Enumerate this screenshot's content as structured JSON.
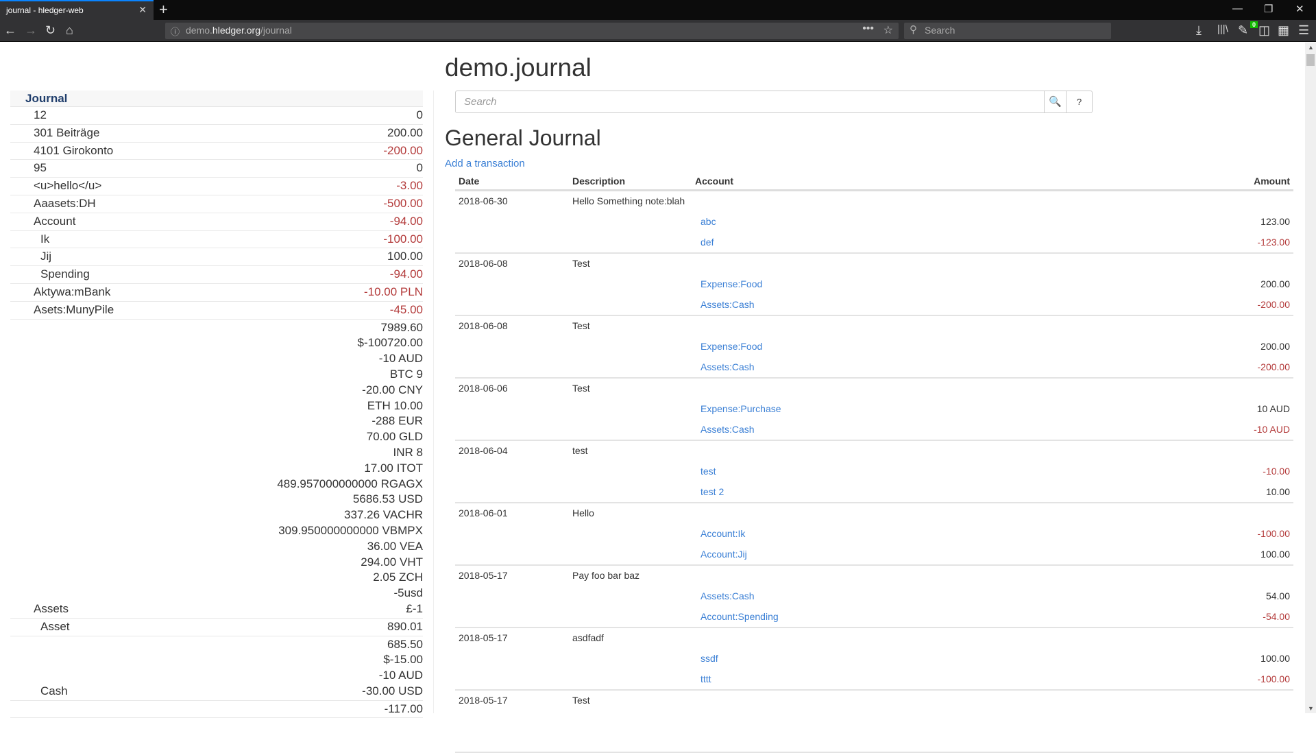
{
  "browser": {
    "tab_title": "journal - hledger-web",
    "url_host_prefix": "demo.",
    "url_host": "hledger.org",
    "url_path": "/journal",
    "search_placeholder": "Search",
    "badge_count": "0",
    "accent": "#0a84ff"
  },
  "page": {
    "title": "demo.journal",
    "search_placeholder": "Search",
    "search_button": "🔍",
    "help_button": "?",
    "journal_title": "General Journal",
    "add_transaction": "Add a transaction"
  },
  "sidebar": {
    "header": "Journal",
    "rows": [
      {
        "name": "12",
        "level": 1,
        "amounts": [
          {
            "t": "0"
          }
        ]
      },
      {
        "name": "301 Beiträge",
        "level": 1,
        "amounts": [
          {
            "t": "200.00"
          }
        ]
      },
      {
        "name": "4101 Girokonto",
        "level": 1,
        "amounts": [
          {
            "t": "-200.00",
            "neg": true
          }
        ]
      },
      {
        "name": "95",
        "level": 1,
        "amounts": [
          {
            "t": "0"
          }
        ]
      },
      {
        "name": "<u>hello</u>",
        "level": 1,
        "amounts": [
          {
            "t": "-3.00",
            "neg": true
          }
        ]
      },
      {
        "name": "Aaasets:DH",
        "level": 1,
        "amounts": [
          {
            "t": "-500.00",
            "neg": true
          }
        ]
      },
      {
        "name": "Account",
        "level": 1,
        "amounts": [
          {
            "t": "-94.00",
            "neg": true
          }
        ]
      },
      {
        "name": "Ik",
        "level": 2,
        "amounts": [
          {
            "t": "-100.00",
            "neg": true
          }
        ]
      },
      {
        "name": "Jij",
        "level": 2,
        "amounts": [
          {
            "t": "100.00"
          }
        ]
      },
      {
        "name": "Spending",
        "level": 2,
        "amounts": [
          {
            "t": "-94.00",
            "neg": true
          }
        ]
      },
      {
        "name": "Aktywa:mBank",
        "level": 1,
        "amounts": [
          {
            "t": "-10.00 PLN",
            "neg": true
          }
        ]
      },
      {
        "name": "Asets:MunyPile",
        "level": 1,
        "amounts": [
          {
            "t": "-45.00",
            "neg": true
          }
        ]
      },
      {
        "name": "Assets",
        "level": 1,
        "amounts": [
          {
            "t": "7989.60"
          },
          {
            "t": "$-100720.00"
          },
          {
            "t": "-10 AUD"
          },
          {
            "t": "BTC 9"
          },
          {
            "t": "-20.00 CNY"
          },
          {
            "t": "ETH 10.00"
          },
          {
            "t": "-288 EUR"
          },
          {
            "t": "70.00 GLD"
          },
          {
            "t": "INR 8"
          },
          {
            "t": "17.00 ITOT"
          },
          {
            "t": "489.957000000000 RGAGX"
          },
          {
            "t": "5686.53 USD"
          },
          {
            "t": "337.26 VACHR"
          },
          {
            "t": "309.950000000000 VBMPX"
          },
          {
            "t": "36.00 VEA"
          },
          {
            "t": "294.00 VHT"
          },
          {
            "t": "2.05 ZCH"
          },
          {
            "t": "-5usd"
          },
          {
            "t": "£-1"
          }
        ]
      },
      {
        "name": "Asset",
        "level": 2,
        "amounts": [
          {
            "t": "890.01"
          }
        ]
      },
      {
        "name": "Cash",
        "level": 2,
        "amounts": [
          {
            "t": "685.50"
          },
          {
            "t": "$-15.00"
          },
          {
            "t": "-10 AUD"
          },
          {
            "t": "-30.00 USD"
          }
        ]
      },
      {
        "name": "",
        "level": 2,
        "amounts": [
          {
            "t": "-117.00"
          }
        ]
      }
    ]
  },
  "table": {
    "headers": {
      "date": "Date",
      "description": "Description",
      "account": "Account",
      "amount": "Amount"
    },
    "transactions": [
      {
        "date": "2018-06-30",
        "description": "Hello Something note:blah",
        "postings": [
          {
            "account": "abc",
            "amount": "123.00"
          },
          {
            "account": "def",
            "amount": "-123.00",
            "neg": true
          }
        ]
      },
      {
        "date": "2018-06-08",
        "description": "Test",
        "postings": [
          {
            "account": "Expense:Food",
            "amount": "200.00"
          },
          {
            "account": "Assets:Cash",
            "amount": "-200.00",
            "neg": true
          }
        ]
      },
      {
        "date": "2018-06-08",
        "description": "Test",
        "postings": [
          {
            "account": "Expense:Food",
            "amount": "200.00"
          },
          {
            "account": "Assets:Cash",
            "amount": "-200.00",
            "neg": true
          }
        ]
      },
      {
        "date": "2018-06-06",
        "description": "Test",
        "postings": [
          {
            "account": "Expense:Purchase",
            "amount": "10 AUD"
          },
          {
            "account": "Assets:Cash",
            "amount": "-10 AUD",
            "neg": true
          }
        ]
      },
      {
        "date": "2018-06-04",
        "description": "test",
        "postings": [
          {
            "account": "test",
            "amount": "-10.00",
            "neg": true
          },
          {
            "account": "test 2",
            "amount": "10.00"
          }
        ]
      },
      {
        "date": "2018-06-01",
        "description": "Hello",
        "postings": [
          {
            "account": "Account:Ik",
            "amount": "-100.00",
            "neg": true
          },
          {
            "account": "Account:Jij",
            "amount": "100.00"
          }
        ]
      },
      {
        "date": "2018-05-17",
        "description": "Pay foo bar baz",
        "postings": [
          {
            "account": "Assets:Cash",
            "amount": "54.00"
          },
          {
            "account": "Account:Spending",
            "amount": "-54.00",
            "neg": true
          }
        ]
      },
      {
        "date": "2018-05-17",
        "description": "asdfadf",
        "postings": [
          {
            "account": "ssdf",
            "amount": "100.00"
          },
          {
            "account": "tttt",
            "amount": "-100.00",
            "neg": true
          }
        ]
      },
      {
        "date": "2018-05-17",
        "description": "Test",
        "postings": []
      }
    ]
  },
  "colors": {
    "negative": "#b33a3a",
    "link": "#3a7fd5",
    "sidebar_header": "#1f3d6b"
  }
}
